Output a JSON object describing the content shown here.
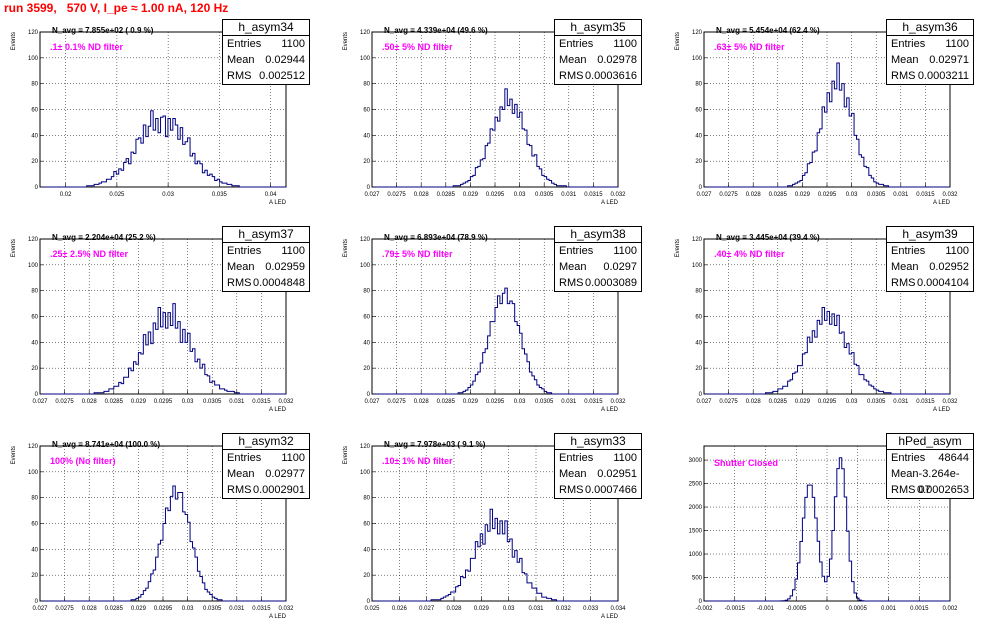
{
  "page": {
    "title": "run 3599,   570 V, I_pe ≈ 1.00 nA, 120 Hz"
  },
  "chart_data": [
    {
      "type": "bar",
      "name": "h_asym34",
      "stats": {
        "entries": "1100",
        "mean": "0.02944",
        "rms": "0.002512"
      },
      "navg": "N_avg = 7.855e+02 ( 0.9 %)",
      "filter": ".1± 0.1% ND filter",
      "ylabel": "Events",
      "xlabel": "A_LED",
      "xlim": [
        0.0175,
        0.0415
      ],
      "ylim": [
        0,
        120
      ],
      "xticks": [
        0.02,
        0.025,
        0.03,
        0.035,
        0.04
      ],
      "xtick_labels": [
        "0.02",
        "0.025",
        "0.03",
        "0.035",
        "0.04"
      ],
      "yticks": [
        0,
        20,
        40,
        60,
        80,
        100,
        120
      ],
      "mean": 0.02944,
      "rms": 0.002512,
      "peak": 50,
      "spikes": [
        0.28,
        -0.2,
        0.22,
        -0.15,
        0.18
      ]
    },
    {
      "type": "bar",
      "name": "h_asym35",
      "stats": {
        "entries": "1100",
        "mean": "0.02978",
        "rms": "0.0003616"
      },
      "navg": "N_avg = 4.339e+04 (49.6 %)",
      "filter": ".50± 5% ND filter",
      "ylabel": "Events",
      "xlabel": "A_LED",
      "xlim": [
        0.027,
        0.032
      ],
      "ylim": [
        0,
        120
      ],
      "xticks": [
        0.027,
        0.0275,
        0.028,
        0.0285,
        0.029,
        0.0295,
        0.03,
        0.0305,
        0.031,
        0.0315,
        0.032
      ],
      "xtick_labels": [
        "0.027",
        "0.0275",
        "0.028",
        "0.0285",
        "0.029",
        "0.0295",
        "0.03",
        "0.0305",
        "0.031",
        "0.0315",
        "0.032"
      ],
      "yticks": [
        0,
        20,
        40,
        60,
        80,
        100,
        120
      ],
      "mean": 0.02978,
      "rms": 0.0003616,
      "peak": 65,
      "spikes": [
        0.12,
        -0.1,
        0.18,
        -0.08
      ]
    },
    {
      "type": "bar",
      "name": "h_asym36",
      "stats": {
        "entries": "1100",
        "mean": "0.02971",
        "rms": "0.0003211"
      },
      "navg": "N_avg = 5.454e+04 (62.4 %)",
      "filter": ".63± 5% ND filter",
      "ylabel": "Events",
      "xlabel": "A_LED",
      "xlim": [
        0.027,
        0.032
      ],
      "ylim": [
        0,
        120
      ],
      "xticks": [
        0.027,
        0.0275,
        0.028,
        0.0285,
        0.029,
        0.0295,
        0.03,
        0.0305,
        0.031,
        0.0315,
        0.032
      ],
      "xtick_labels": [
        "0.027",
        "0.0275",
        "0.028",
        "0.0285",
        "0.029",
        "0.0295",
        "0.03",
        "0.0305",
        "0.031",
        "0.0315",
        "0.032"
      ],
      "yticks": [
        0,
        20,
        40,
        60,
        80,
        100,
        120
      ],
      "mean": 0.02971,
      "rms": 0.0003211,
      "peak": 80,
      "spikes": [
        0.15,
        -0.12,
        0.2,
        -0.1
      ]
    },
    {
      "type": "bar",
      "name": "h_asym37",
      "stats": {
        "entries": "1100",
        "mean": "0.02959",
        "rms": "0.0004848"
      },
      "navg": "N_avg = 2.204e+04 (25.2 %)",
      "filter": ".25± 2.5% ND filter",
      "ylabel": "Events",
      "xlabel": "A_LED",
      "xlim": [
        0.027,
        0.032
      ],
      "ylim": [
        0,
        120
      ],
      "xticks": [
        0.027,
        0.0275,
        0.028,
        0.0285,
        0.029,
        0.0295,
        0.03,
        0.0305,
        0.031,
        0.0315,
        0.032
      ],
      "xtick_labels": [
        "0.027",
        "0.0275",
        "0.028",
        "0.0285",
        "0.029",
        "0.0295",
        "0.03",
        "0.0305",
        "0.031",
        "0.0315",
        "0.032"
      ],
      "yticks": [
        0,
        20,
        40,
        60,
        80,
        100,
        120
      ],
      "mean": 0.02959,
      "rms": 0.0004848,
      "peak": 58,
      "spikes": [
        0.22,
        -0.18,
        0.25,
        -0.12
      ]
    },
    {
      "type": "bar",
      "name": "h_asym38",
      "stats": {
        "entries": "1100",
        "mean": "0.0297",
        "rms": "0.0003089"
      },
      "navg": "N_avg = 6.893e+04 (78.9 %)",
      "filter": ".79± 5% ND filter",
      "ylabel": "Events",
      "xlabel": "A_LED",
      "xlim": [
        0.027,
        0.032
      ],
      "ylim": [
        0,
        120
      ],
      "xticks": [
        0.027,
        0.0275,
        0.028,
        0.0285,
        0.029,
        0.0295,
        0.03,
        0.0305,
        0.031,
        0.0315,
        0.032
      ],
      "xtick_labels": [
        "0.027",
        "0.0275",
        "0.028",
        "0.0285",
        "0.029",
        "0.0295",
        "0.03",
        "0.0305",
        "0.031",
        "0.0315",
        "0.032"
      ],
      "yticks": [
        0,
        20,
        40,
        60,
        80,
        100,
        120
      ],
      "mean": 0.0297,
      "rms": 0.0003089,
      "peak": 75,
      "spikes": [
        0.1,
        -0.08,
        0.12
      ]
    },
    {
      "type": "bar",
      "name": "h_asym39",
      "stats": {
        "entries": "1100",
        "mean": "0.02952",
        "rms": "0.0004104"
      },
      "navg": "N_avg = 3.445e+04 (39.4 %)",
      "filter": ".40± 4% ND filter",
      "ylabel": "Events",
      "xlabel": "A_LED",
      "xlim": [
        0.027,
        0.032
      ],
      "ylim": [
        0,
        120
      ],
      "xticks": [
        0.027,
        0.0275,
        0.028,
        0.0285,
        0.029,
        0.0295,
        0.03,
        0.0305,
        0.031,
        0.0315,
        0.032
      ],
      "xtick_labels": [
        "0.027",
        "0.0275",
        "0.028",
        "0.0285",
        "0.029",
        "0.0295",
        "0.03",
        "0.0305",
        "0.031",
        "0.0315",
        "0.032"
      ],
      "yticks": [
        0,
        20,
        40,
        60,
        80,
        100,
        120
      ],
      "mean": 0.02952,
      "rms": 0.0004104,
      "peak": 60,
      "spikes": [
        0.15,
        -0.12,
        0.16,
        -0.1
      ]
    },
    {
      "type": "bar",
      "name": "h_asym32",
      "stats": {
        "entries": "1100",
        "mean": "0.02977",
        "rms": "0.0002901"
      },
      "navg": "N_avg = 8.741e+04 (100.0 %)",
      "filter": "100% (No filter)",
      "ylabel": "Events",
      "xlabel": "A_LED",
      "xlim": [
        0.027,
        0.032
      ],
      "ylim": [
        0,
        120
      ],
      "xticks": [
        0.027,
        0.0275,
        0.028,
        0.0285,
        0.029,
        0.0295,
        0.03,
        0.0305,
        0.031,
        0.0315,
        0.032
      ],
      "xtick_labels": [
        "0.027",
        "0.0275",
        "0.028",
        "0.0285",
        "0.029",
        "0.0295",
        "0.03",
        "0.0305",
        "0.031",
        "0.0315",
        "0.032"
      ],
      "yticks": [
        0,
        20,
        40,
        60,
        80,
        100,
        120
      ],
      "mean": 0.02977,
      "rms": 0.0002901,
      "peak": 82,
      "spikes": [
        0.1,
        -0.08,
        0.12
      ]
    },
    {
      "type": "bar",
      "name": "h_asym33",
      "stats": {
        "entries": "1100",
        "mean": "0.02951",
        "rms": "0.0007466"
      },
      "navg": "N_avg = 7.978e+03 ( 9.1 %)",
      "filter": ".10± 1% ND filter",
      "ylabel": "Events",
      "xlabel": "A_LED",
      "xlim": [
        0.025,
        0.034
      ],
      "ylim": [
        0,
        120
      ],
      "xticks": [
        0.025,
        0.026,
        0.027,
        0.028,
        0.029,
        0.03,
        0.031,
        0.032,
        0.033,
        0.034
      ],
      "xtick_labels": [
        "0.025",
        "0.026",
        "0.027",
        "0.028",
        "0.029",
        "0.03",
        "0.031",
        "0.032",
        "0.033",
        "0.034"
      ],
      "yticks": [
        0,
        20,
        40,
        60,
        80,
        100,
        120
      ],
      "mean": 0.02951,
      "rms": 0.0007466,
      "peak": 60,
      "spikes": [
        0.2,
        -0.15,
        0.18,
        -0.12
      ]
    },
    {
      "type": "bar",
      "name": "hPed_asym",
      "stats": {
        "entries": "48644",
        "mean": "-3.264e-07",
        "rms": "0.0002653"
      },
      "navg": "",
      "filter": "Shutter Closed",
      "ylabel": "",
      "xlabel": "",
      "xlim": [
        -0.002,
        0.002
      ],
      "ylim": [
        0,
        3300
      ],
      "xticks": [
        -0.002,
        -0.0015,
        -0.001,
        -0.0005,
        0,
        0.0005,
        0.001,
        0.0015,
        0.002
      ],
      "xtick_labels": [
        "-0.002",
        "-0.0015",
        "-0.001",
        "-0.0005",
        "0",
        "0.0005",
        "0.001",
        "0.0015",
        "0.002"
      ],
      "yticks": [
        0,
        500,
        1000,
        1500,
        2000,
        2500,
        3000
      ],
      "bimodal": [
        {
          "mean": -0.00028,
          "rms": 0.00012,
          "peak": 2500
        },
        {
          "mean": 0.00022,
          "rms": 0.0001,
          "peak": 3050
        }
      ],
      "dip": 1750
    }
  ]
}
